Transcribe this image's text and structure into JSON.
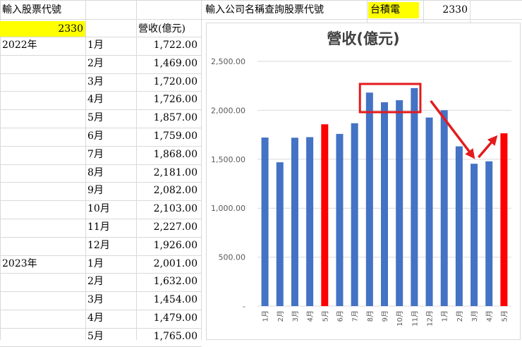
{
  "sheet": {
    "input_label": "輸入股票代號",
    "input_value": "2330",
    "header_revenue": "營收(億元)",
    "lookup_label": "輸入公司名稱查詢股票代號",
    "company_name": "台積電",
    "company_code": "2330",
    "rows": [
      {
        "year": "2022年",
        "month": "1月",
        "value": "1,722.00"
      },
      {
        "year": "",
        "month": "2月",
        "value": "1,469.00"
      },
      {
        "year": "",
        "month": "3月",
        "value": "1,720.00"
      },
      {
        "year": "",
        "month": "4月",
        "value": "1,726.00"
      },
      {
        "year": "",
        "month": "5月",
        "value": "1,857.00"
      },
      {
        "year": "",
        "month": "6月",
        "value": "1,759.00"
      },
      {
        "year": "",
        "month": "7月",
        "value": "1,868.00"
      },
      {
        "year": "",
        "month": "8月",
        "value": "2,181.00"
      },
      {
        "year": "",
        "month": "9月",
        "value": "2,082.00"
      },
      {
        "year": "",
        "month": "10月",
        "value": "2,103.00"
      },
      {
        "year": "",
        "month": "11月",
        "value": "2,227.00"
      },
      {
        "year": "",
        "month": "12月",
        "value": "1,926.00"
      },
      {
        "year": "2023年",
        "month": "1月",
        "value": "2,001.00"
      },
      {
        "year": "",
        "month": "2月",
        "value": "1,632.00"
      },
      {
        "year": "",
        "month": "3月",
        "value": "1,454.00"
      },
      {
        "year": "",
        "month": "4月",
        "value": "1,479.00"
      },
      {
        "year": "",
        "month": "5月",
        "value": "1,765.00"
      }
    ]
  },
  "colors": {
    "bar": "#4472c4",
    "highlight": "#ff0000",
    "input_fill": "#ffff00",
    "annotation": "#e41a1c"
  },
  "chart_data": {
    "type": "bar",
    "title": "營收(億元)",
    "categories": [
      "1月",
      "2月",
      "3月",
      "4月",
      "5月",
      "6月",
      "7月",
      "8月",
      "9月",
      "10月",
      "11月",
      "12月",
      "1月",
      "2月",
      "3月",
      "4月",
      "5月"
    ],
    "values": [
      1722,
      1469,
      1720,
      1726,
      1857,
      1759,
      1868,
      2181,
      2082,
      2103,
      2227,
      1926,
      2001,
      1632,
      1454,
      1479,
      1765
    ],
    "highlight_indices": [
      4,
      16
    ],
    "ylim": [
      0,
      2500
    ],
    "yticks": [
      "-",
      "500.00",
      "1,000.00",
      "1,500.00",
      "2,000.00",
      "2,500.00"
    ],
    "grid": true,
    "legend": "none",
    "annotations": [
      "red box around 8月–11月 bars",
      "red arrow down to 2023 3月",
      "red arrow up to 2023 5月"
    ]
  }
}
